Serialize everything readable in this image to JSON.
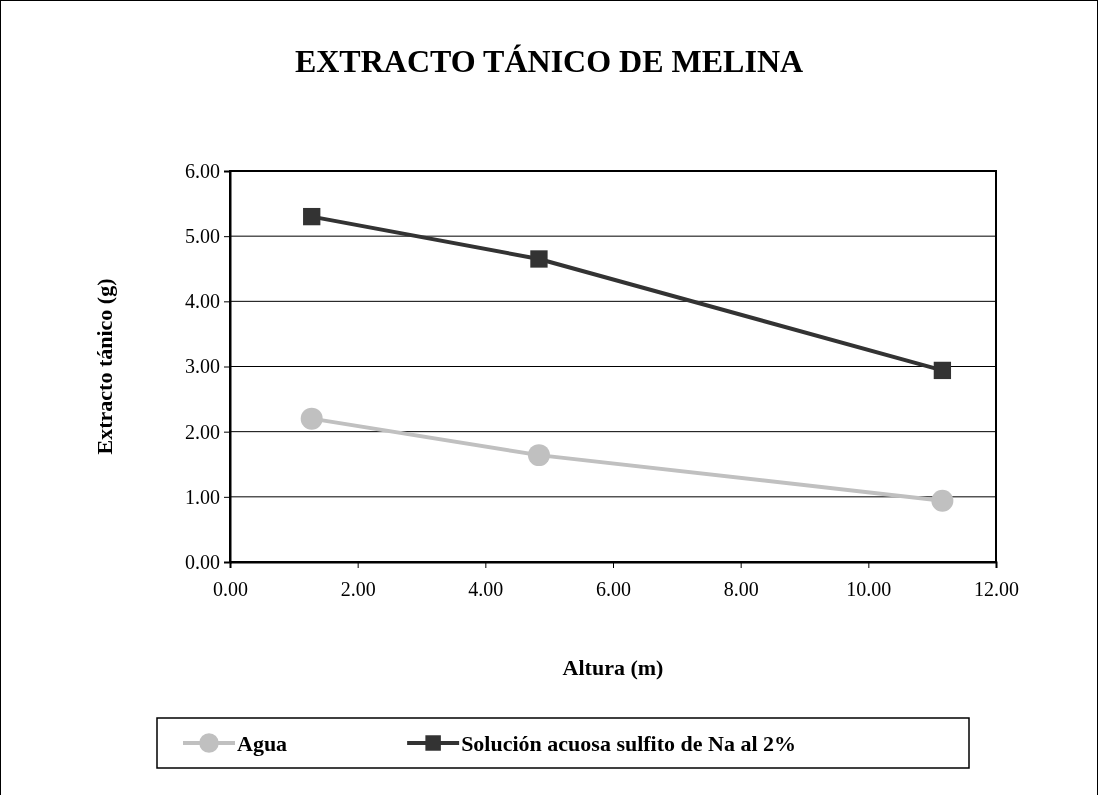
{
  "chart_data": {
    "type": "line",
    "title": "EXTRACTO TÁNICO DE MELINA",
    "xlabel": "Altura (m)",
    "ylabel": "Extracto tánico (g)",
    "xlim": [
      0,
      12
    ],
    "xticks": [
      {
        "value": 0,
        "label": "0.00"
      },
      {
        "value": 2,
        "label": "2.00"
      },
      {
        "value": 4,
        "label": "4.00"
      },
      {
        "value": 6,
        "label": "6.00"
      },
      {
        "value": 8,
        "label": "8.00"
      },
      {
        "value": 10,
        "label": "10.00"
      },
      {
        "value": 12,
        "label": "12.00"
      }
    ],
    "ylim": [
      0,
      6
    ],
    "yticks": [
      {
        "value": 0,
        "label": "0.00"
      },
      {
        "value": 1,
        "label": "1.00"
      },
      {
        "value": 2,
        "label": "2.00"
      },
      {
        "value": 3,
        "label": "3.00"
      },
      {
        "value": 4,
        "label": "4.00"
      },
      {
        "value": 5,
        "label": "5.00"
      },
      {
        "value": 6,
        "label": "6.00"
      }
    ],
    "x": [
      1.28,
      4.84,
      11.16
    ],
    "series": [
      {
        "name": "Agua",
        "color": "#c0c0c0",
        "marker": "circle",
        "values": [
          2.2,
          1.64,
          0.94
        ]
      },
      {
        "name": "Solución acuosa sulfito de Na al 2%",
        "color": "#333333",
        "marker": "square",
        "values": [
          5.3,
          4.65,
          2.94
        ]
      }
    ],
    "grid": "y",
    "legend": "bottom"
  }
}
